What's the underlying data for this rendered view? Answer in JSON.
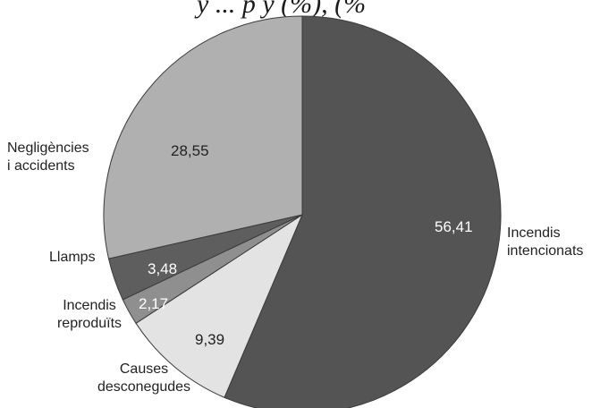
{
  "title_fragment": "y ... p y (%), (%",
  "chart_data": {
    "type": "pie",
    "title": "",
    "slices": [
      {
        "category": [
          "Incendis",
          "intencionats"
        ],
        "value": 56.41,
        "value_label": "56,41",
        "color": "#545454"
      },
      {
        "category": [
          "Causes",
          "desconegudes"
        ],
        "value": 9.39,
        "value_label": "9,39",
        "color": "#e3e3e3"
      },
      {
        "category": [
          "Incendis",
          "reproduïts"
        ],
        "value": 2.17,
        "value_label": "2,17",
        "color": "#8f8f8f"
      },
      {
        "category": [
          "Llamps"
        ],
        "value": 3.48,
        "value_label": "3,48",
        "color": "#5e5e5e"
      },
      {
        "category": [
          "Negligències",
          "i accidents"
        ],
        "value": 28.55,
        "value_label": "28,55",
        "color": "#b0b0b0"
      }
    ]
  }
}
